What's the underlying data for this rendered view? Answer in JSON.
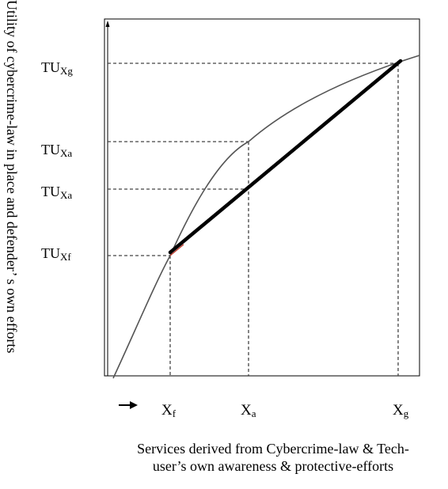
{
  "diagram": {
    "y_axis_label": "Utility of cybercrime-law in place and defender’ s own efforts",
    "y_levels": [
      {
        "id": "tu-xg",
        "main": "TU",
        "sub": "Xg"
      },
      {
        "id": "tu-xa-upper",
        "main": "TU",
        "sub": "Xa"
      },
      {
        "id": "tu-xa-lower",
        "main": "TU",
        "sub": "Xa"
      },
      {
        "id": "tu-xf",
        "main": "TU",
        "sub": "Xf"
      }
    ],
    "x_points": [
      {
        "id": "xf",
        "main": "X",
        "sub": "f"
      },
      {
        "id": "xa",
        "main": "X",
        "sub": "a"
      },
      {
        "id": "xg",
        "main": "X",
        "sub": "g"
      }
    ],
    "x_axis_caption_line1": "Services derived from Cybercrime-law & Tech-",
    "x_axis_caption_line2": "user’s own awareness & protective-efforts",
    "colors": {
      "curve": "#555555",
      "chord": "#000000",
      "chord_start_accent": "#c0392b",
      "dashes": "#444444",
      "frame": "#000000"
    },
    "icons": {
      "direction_arrow": "right-arrow-icon"
    }
  }
}
